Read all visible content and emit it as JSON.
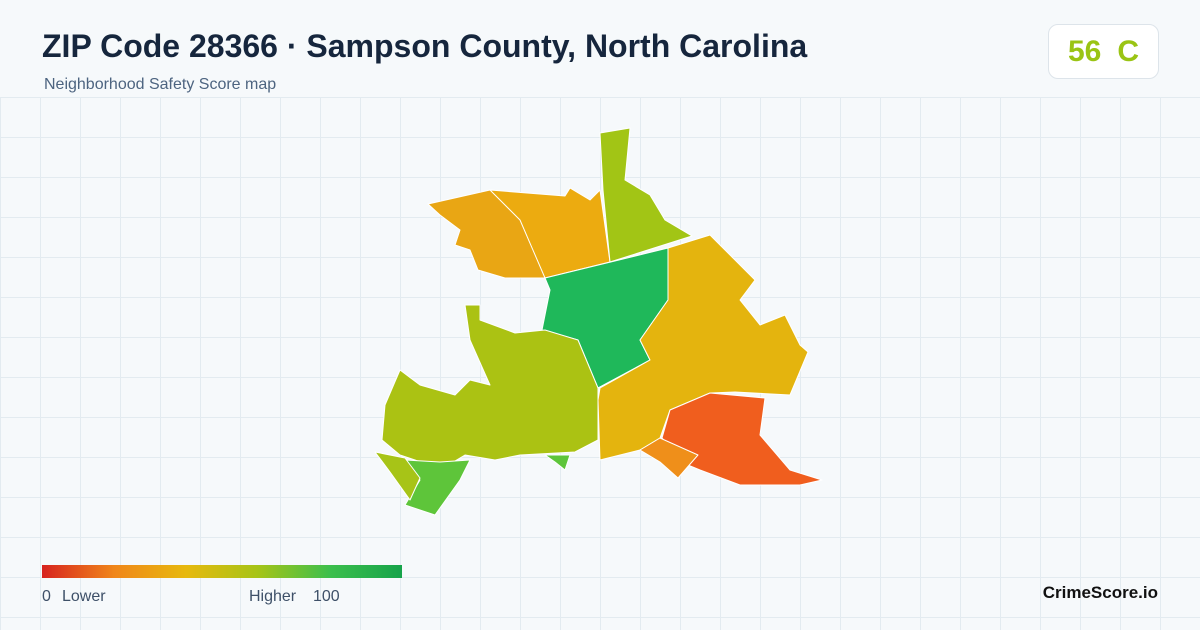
{
  "header": {
    "title": "ZIP Code 28366 · Sampson County, North Carolina",
    "subtitle": "Neighborhood Safety Score map"
  },
  "score": {
    "value": "56",
    "grade": "C"
  },
  "legend": {
    "min": "0",
    "min_label": "Lower",
    "max_label": "Higher",
    "max": "100"
  },
  "brand": "CrimeScore.io"
}
